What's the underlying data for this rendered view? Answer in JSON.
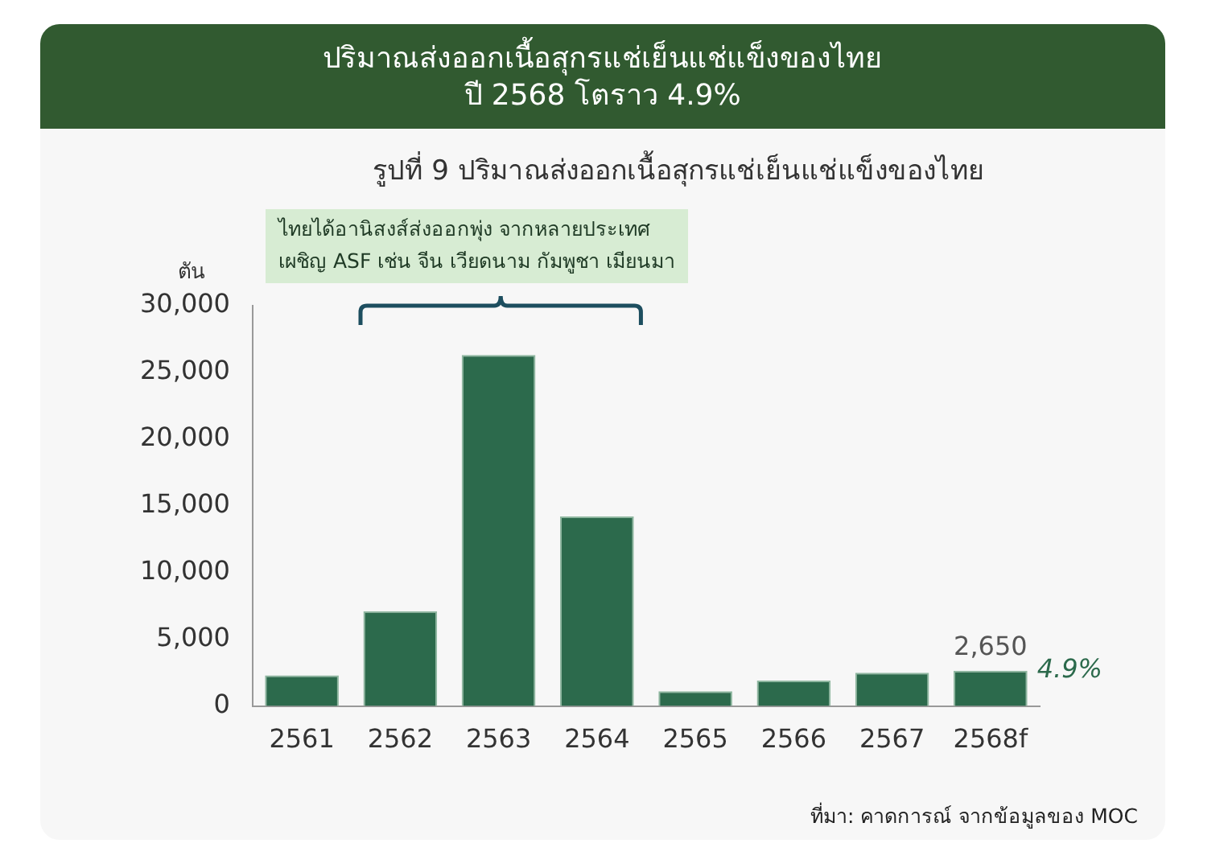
{
  "chart_data": {
    "type": "bar",
    "title": "ปริมาณส่งออกเนื้อสุกรแช่เย็นแช่แข็งของไทย\nปี 2568 โตราว 4.9%",
    "subtitle": "รูปที่ 9 ปริมาณส่งออกเนื้อสุกรแช่เย็นแช่แข็งของไทย",
    "ylabel": "ตัน",
    "categories": [
      "2561",
      "2562",
      "2563",
      "2564",
      "2565",
      "2566",
      "2567",
      "2568f"
    ],
    "values": [
      2300,
      7100,
      26300,
      14200,
      1100,
      1900,
      2500,
      2650
    ],
    "value_labels": [
      null,
      null,
      null,
      null,
      null,
      null,
      null,
      "2,650"
    ],
    "color": "#2c6a4c",
    "ylim": [
      0,
      30000
    ],
    "yticks": [
      {
        "value": 0,
        "label": "0"
      },
      {
        "value": 5000,
        "label": "5,000"
      },
      {
        "value": 10000,
        "label": "10,000"
      },
      {
        "value": 15000,
        "label": "15,000"
      },
      {
        "value": 20000,
        "label": "20,000"
      },
      {
        "value": 25000,
        "label": "25,000"
      },
      {
        "value": 30000,
        "label": "30,000"
      }
    ],
    "grid": false,
    "legend": false,
    "annotations": [
      "ไทยได้อานิสงส์ส่งออกพุ่ง จากหลายประเทศ\nเผชิญ ASF เช่น จีน เวียดนาม กัมพูชา เมียนมา",
      {
        "text": "4.9%",
        "x": "2568f",
        "y": 2650
      },
      "ที่มา: คาดการณ์ จากข้อมูลของ MOC"
    ]
  }
}
